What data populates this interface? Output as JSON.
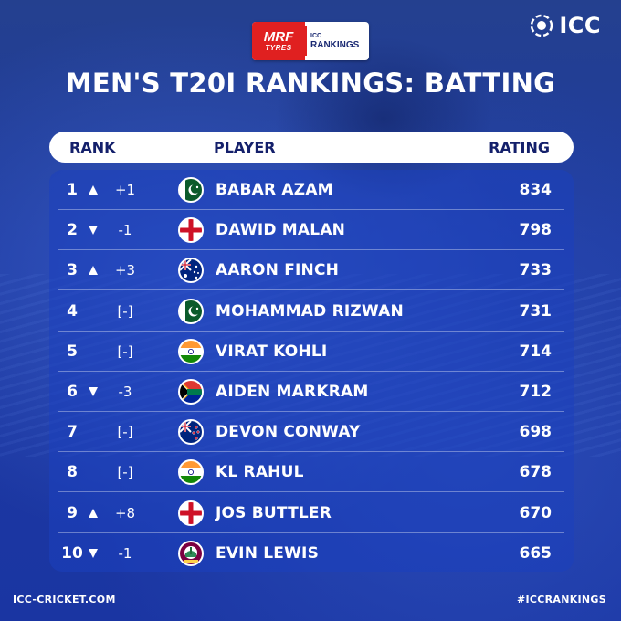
{
  "brand": {
    "logo_text": "ICC",
    "sponsor_main": "MRF",
    "sponsor_sub": "TYRES",
    "rankings_small": "ICC",
    "rankings_label": "RANKINGS"
  },
  "title": "MEN'S T20I RANKINGS: BATTING",
  "columns": {
    "rank": "RANK",
    "player": "PLAYER",
    "rating": "RATING"
  },
  "rows": [
    {
      "rank": "1",
      "trend": "up",
      "change": "+1",
      "flag": "pakistan",
      "player": "BABAR AZAM",
      "rating": "834"
    },
    {
      "rank": "2",
      "trend": "down",
      "change": "-1",
      "flag": "england",
      "player": "DAWID MALAN",
      "rating": "798"
    },
    {
      "rank": "3",
      "trend": "up",
      "change": "+3",
      "flag": "australia",
      "player": "AARON FINCH",
      "rating": "733"
    },
    {
      "rank": "4",
      "trend": "same",
      "change": "[-]",
      "flag": "pakistan",
      "player": "MOHAMMAD RIZWAN",
      "rating": "731"
    },
    {
      "rank": "5",
      "trend": "same",
      "change": "[-]",
      "flag": "india",
      "player": "VIRAT KOHLI",
      "rating": "714"
    },
    {
      "rank": "6",
      "trend": "down",
      "change": "-3",
      "flag": "south-africa",
      "player": "AIDEN MARKRAM",
      "rating": "712"
    },
    {
      "rank": "7",
      "trend": "same",
      "change": "[-]",
      "flag": "new-zealand",
      "player": "DEVON CONWAY",
      "rating": "698"
    },
    {
      "rank": "8",
      "trend": "same",
      "change": "[-]",
      "flag": "india",
      "player": "KL RAHUL",
      "rating": "678"
    },
    {
      "rank": "9",
      "trend": "up",
      "change": "+8",
      "flag": "england",
      "player": "JOS BUTTLER",
      "rating": "670"
    },
    {
      "rank": "10",
      "trend": "down",
      "change": "-1",
      "flag": "west-indies",
      "player": "EVIN LEWIS",
      "rating": "665"
    }
  ],
  "footer": {
    "left": "ICC-CRICKET.COM",
    "right": "#ICCRANKINGS"
  },
  "colors": {
    "background": "#1f3a9e",
    "header_text": "#14206b",
    "sponsor_red": "#e02020"
  }
}
